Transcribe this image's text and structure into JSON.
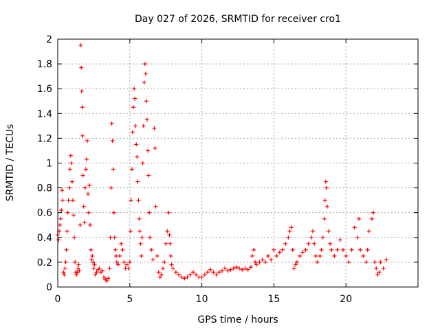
{
  "chart_data": {
    "type": "scatter",
    "title": "Day 027 of 2026, SRMTID for receiver cro1",
    "xlabel": "GPS time / hours",
    "ylabel": "SRMTID / TECUs",
    "xlim": [
      0,
      25
    ],
    "ylim": [
      0,
      2
    ],
    "x_ticks": [
      0,
      5,
      10,
      15,
      20
    ],
    "x_tick_labels": [
      "0",
      "5",
      "10",
      "15",
      "20"
    ],
    "y_ticks": [
      0,
      0.2,
      0.4,
      0.6,
      0.8,
      1,
      1.2,
      1.4,
      1.6,
      1.8,
      2
    ],
    "y_tick_labels": [
      "0",
      "0.2",
      "0.4",
      "0.6",
      "0.8",
      "1",
      "1.2",
      "1.4",
      "1.6",
      "1.8",
      "2"
    ],
    "grid": true,
    "marker": "+",
    "color": "#ff0000",
    "series": [
      {
        "name": "SRMTID",
        "points": [
          [
            0.0,
            0.42
          ],
          [
            0.05,
            0.38
          ],
          [
            0.1,
            0.45
          ],
          [
            0.15,
            0.5
          ],
          [
            0.2,
            0.55
          ],
          [
            0.25,
            0.62
          ],
          [
            0.3,
            0.78
          ],
          [
            0.35,
            0.7
          ],
          [
            0.4,
            0.12
          ],
          [
            0.45,
            0.1
          ],
          [
            0.5,
            0.15
          ],
          [
            0.55,
            0.2
          ],
          [
            0.6,
            0.3
          ],
          [
            0.65,
            0.45
          ],
          [
            0.7,
            0.6
          ],
          [
            0.75,
            0.7
          ],
          [
            0.8,
            0.8
          ],
          [
            0.85,
            0.95
          ],
          [
            0.9,
            1.06
          ],
          [
            0.95,
            1.0
          ],
          [
            1.0,
            0.85
          ],
          [
            1.05,
            0.7
          ],
          [
            1.1,
            0.58
          ],
          [
            1.15,
            0.4
          ],
          [
            1.2,
            0.2
          ],
          [
            1.25,
            0.12
          ],
          [
            1.3,
            0.1
          ],
          [
            1.35,
            0.12
          ],
          [
            1.4,
            0.15
          ],
          [
            1.45,
            0.18
          ],
          [
            1.5,
            0.13
          ],
          [
            1.55,
            0.5
          ],
          [
            1.6,
            1.95
          ],
          [
            1.63,
            1.77
          ],
          [
            1.66,
            1.58
          ],
          [
            1.7,
            1.45
          ],
          [
            1.72,
            1.22
          ],
          [
            1.75,
            0.9
          ],
          [
            1.8,
            0.65
          ],
          [
            1.85,
            0.52
          ],
          [
            1.9,
            0.8
          ],
          [
            1.95,
            0.95
          ],
          [
            2.0,
            1.03
          ],
          [
            2.05,
            1.18
          ],
          [
            2.1,
            0.75
          ],
          [
            2.15,
            0.6
          ],
          [
            2.2,
            0.82
          ],
          [
            2.25,
            0.5
          ],
          [
            2.3,
            0.3
          ],
          [
            2.35,
            0.22
          ],
          [
            2.4,
            0.25
          ],
          [
            2.45,
            0.2
          ],
          [
            2.5,
            0.15
          ],
          [
            2.55,
            0.18
          ],
          [
            2.6,
            0.1
          ],
          [
            2.7,
            0.12
          ],
          [
            2.8,
            0.14
          ],
          [
            2.9,
            0.15
          ],
          [
            3.0,
            0.12
          ],
          [
            3.1,
            0.13
          ],
          [
            3.2,
            0.08
          ],
          [
            3.3,
            0.06
          ],
          [
            3.4,
            0.05
          ],
          [
            3.5,
            0.07
          ],
          [
            3.6,
            0.15
          ],
          [
            3.65,
            0.4
          ],
          [
            3.7,
            0.8
          ],
          [
            3.75,
            1.32
          ],
          [
            3.8,
            1.18
          ],
          [
            3.85,
            0.95
          ],
          [
            3.9,
            0.6
          ],
          [
            3.95,
            0.4
          ],
          [
            4.0,
            0.3
          ],
          [
            4.05,
            0.25
          ],
          [
            4.1,
            0.2
          ],
          [
            4.2,
            0.18
          ],
          [
            4.3,
            0.25
          ],
          [
            4.4,
            0.35
          ],
          [
            4.5,
            0.3
          ],
          [
            4.6,
            0.2
          ],
          [
            4.7,
            0.15
          ],
          [
            4.8,
            0.18
          ],
          [
            4.9,
            0.15
          ],
          [
            5.0,
            0.2
          ],
          [
            5.05,
            0.45
          ],
          [
            5.1,
            0.7
          ],
          [
            5.15,
            0.95
          ],
          [
            5.2,
            1.25
          ],
          [
            5.25,
            1.45
          ],
          [
            5.3,
            1.6
          ],
          [
            5.35,
            1.52
          ],
          [
            5.4,
            1.3
          ],
          [
            5.45,
            1.15
          ],
          [
            5.5,
            1.05
          ],
          [
            5.55,
            0.85
          ],
          [
            5.6,
            0.7
          ],
          [
            5.65,
            0.55
          ],
          [
            5.7,
            0.45
          ],
          [
            5.75,
            0.35
          ],
          [
            5.8,
            0.25
          ],
          [
            5.85,
            0.4
          ],
          [
            5.9,
            1.0
          ],
          [
            5.95,
            1.3
          ],
          [
            6.0,
            1.65
          ],
          [
            6.05,
            1.8
          ],
          [
            6.1,
            1.72
          ],
          [
            6.15,
            1.5
          ],
          [
            6.2,
            1.35
          ],
          [
            6.25,
            1.1
          ],
          [
            6.3,
            0.9
          ],
          [
            6.35,
            0.6
          ],
          [
            6.4,
            0.4
          ],
          [
            6.5,
            0.3
          ],
          [
            6.6,
            0.22
          ],
          [
            6.7,
            1.28
          ],
          [
            6.75,
            1.12
          ],
          [
            6.8,
            0.65
          ],
          [
            6.9,
            0.25
          ],
          [
            7.0,
            0.12
          ],
          [
            7.1,
            0.08
          ],
          [
            7.2,
            0.1
          ],
          [
            7.3,
            0.15
          ],
          [
            7.4,
            0.2
          ],
          [
            7.5,
            0.35
          ],
          [
            7.6,
            0.45
          ],
          [
            7.7,
            0.6
          ],
          [
            7.75,
            0.42
          ],
          [
            7.8,
            0.35
          ],
          [
            7.85,
            0.25
          ],
          [
            7.9,
            0.18
          ],
          [
            8.0,
            0.15
          ],
          [
            8.2,
            0.12
          ],
          [
            8.4,
            0.1
          ],
          [
            8.6,
            0.08
          ],
          [
            8.8,
            0.07
          ],
          [
            9.0,
            0.08
          ],
          [
            9.2,
            0.1
          ],
          [
            9.4,
            0.12
          ],
          [
            9.6,
            0.1
          ],
          [
            9.8,
            0.08
          ],
          [
            10.0,
            0.08
          ],
          [
            10.2,
            0.1
          ],
          [
            10.4,
            0.12
          ],
          [
            10.6,
            0.14
          ],
          [
            10.8,
            0.12
          ],
          [
            11.0,
            0.1
          ],
          [
            11.2,
            0.12
          ],
          [
            11.4,
            0.13
          ],
          [
            11.6,
            0.15
          ],
          [
            11.8,
            0.13
          ],
          [
            12.0,
            0.14
          ],
          [
            12.2,
            0.15
          ],
          [
            12.4,
            0.16
          ],
          [
            12.6,
            0.15
          ],
          [
            12.8,
            0.14
          ],
          [
            13.0,
            0.15
          ],
          [
            13.2,
            0.14
          ],
          [
            13.4,
            0.16
          ],
          [
            13.5,
            0.25
          ],
          [
            13.6,
            0.3
          ],
          [
            13.7,
            0.2
          ],
          [
            13.8,
            0.18
          ],
          [
            14.0,
            0.2
          ],
          [
            14.2,
            0.22
          ],
          [
            14.4,
            0.2
          ],
          [
            14.6,
            0.25
          ],
          [
            14.8,
            0.22
          ],
          [
            15.0,
            0.3
          ],
          [
            15.2,
            0.25
          ],
          [
            15.4,
            0.28
          ],
          [
            15.6,
            0.3
          ],
          [
            15.8,
            0.35
          ],
          [
            16.0,
            0.4
          ],
          [
            16.1,
            0.45
          ],
          [
            16.2,
            0.48
          ],
          [
            16.3,
            0.3
          ],
          [
            16.4,
            0.15
          ],
          [
            16.5,
            0.18
          ],
          [
            16.6,
            0.2
          ],
          [
            16.8,
            0.25
          ],
          [
            17.0,
            0.28
          ],
          [
            17.2,
            0.3
          ],
          [
            17.4,
            0.35
          ],
          [
            17.6,
            0.4
          ],
          [
            17.7,
            0.45
          ],
          [
            17.8,
            0.35
          ],
          [
            17.9,
            0.25
          ],
          [
            18.0,
            0.2
          ],
          [
            18.2,
            0.25
          ],
          [
            18.3,
            0.3
          ],
          [
            18.4,
            0.4
          ],
          [
            18.5,
            0.55
          ],
          [
            18.55,
            0.7
          ],
          [
            18.6,
            0.85
          ],
          [
            18.65,
            0.8
          ],
          [
            18.7,
            0.65
          ],
          [
            18.8,
            0.45
          ],
          [
            18.9,
            0.35
          ],
          [
            19.0,
            0.3
          ],
          [
            19.2,
            0.25
          ],
          [
            19.4,
            0.3
          ],
          [
            19.6,
            0.38
          ],
          [
            19.8,
            0.3
          ],
          [
            20.0,
            0.25
          ],
          [
            20.2,
            0.2
          ],
          [
            20.4,
            0.3
          ],
          [
            20.6,
            0.48
          ],
          [
            20.8,
            0.4
          ],
          [
            20.9,
            0.55
          ],
          [
            21.0,
            0.3
          ],
          [
            21.2,
            0.25
          ],
          [
            21.4,
            0.2
          ],
          [
            21.5,
            0.3
          ],
          [
            21.6,
            0.45
          ],
          [
            21.8,
            0.55
          ],
          [
            21.9,
            0.6
          ],
          [
            22.0,
            0.2
          ],
          [
            22.1,
            0.15
          ],
          [
            22.2,
            0.1
          ],
          [
            22.3,
            0.12
          ],
          [
            22.4,
            0.2
          ],
          [
            22.6,
            0.15
          ],
          [
            22.8,
            0.22
          ]
        ]
      }
    ]
  }
}
